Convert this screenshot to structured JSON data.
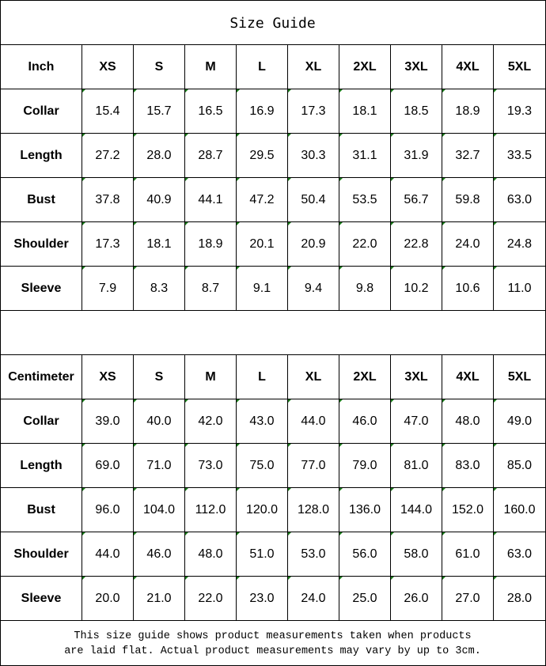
{
  "title": "Size Guide",
  "inch_table": {
    "header": [
      "Inch",
      "XS",
      "S",
      "M",
      "L",
      "XL",
      "2XL",
      "3XL",
      "4XL",
      "5XL"
    ],
    "rows": [
      {
        "label": "Collar",
        "values": [
          "15.4",
          "15.7",
          "16.5",
          "16.9",
          "17.3",
          "18.1",
          "18.5",
          "18.9",
          "19.3"
        ]
      },
      {
        "label": "Length",
        "values": [
          "27.2",
          "28.0",
          "28.7",
          "29.5",
          "30.3",
          "31.1",
          "31.9",
          "32.7",
          "33.5"
        ]
      },
      {
        "label": "Bust",
        "values": [
          "37.8",
          "40.9",
          "44.1",
          "47.2",
          "50.4",
          "53.5",
          "56.7",
          "59.8",
          "63.0"
        ]
      },
      {
        "label": "Shoulder",
        "values": [
          "17.3",
          "18.1",
          "18.9",
          "20.1",
          "20.9",
          "22.0",
          "22.8",
          "24.0",
          "24.8"
        ]
      },
      {
        "label": "Sleeve",
        "values": [
          "7.9",
          "8.3",
          "8.7",
          "9.1",
          "9.4",
          "9.8",
          "10.2",
          "10.6",
          "11.0"
        ]
      }
    ]
  },
  "cm_table": {
    "header": [
      "Centimeter",
      "XS",
      "S",
      "M",
      "L",
      "XL",
      "2XL",
      "3XL",
      "4XL",
      "5XL"
    ],
    "rows": [
      {
        "label": "Collar",
        "values": [
          "39.0",
          "40.0",
          "42.0",
          "43.0",
          "44.0",
          "46.0",
          "47.0",
          "48.0",
          "49.0"
        ]
      },
      {
        "label": "Length",
        "values": [
          "69.0",
          "71.0",
          "73.0",
          "75.0",
          "77.0",
          "79.0",
          "81.0",
          "83.0",
          "85.0"
        ]
      },
      {
        "label": "Bust",
        "values": [
          "96.0",
          "104.0",
          "112.0",
          "120.0",
          "128.0",
          "136.0",
          "144.0",
          "152.0",
          "160.0"
        ]
      },
      {
        "label": "Shoulder",
        "values": [
          "44.0",
          "46.0",
          "48.0",
          "51.0",
          "53.0",
          "56.0",
          "58.0",
          "61.0",
          "63.0"
        ]
      },
      {
        "label": "Sleeve",
        "values": [
          "20.0",
          "21.0",
          "22.0",
          "23.0",
          "24.0",
          "25.0",
          "26.0",
          "27.0",
          "28.0"
        ]
      }
    ]
  },
  "footer": {
    "line1": "This size guide shows product measurements taken when products",
    "line2": "are laid flat. Actual product measurements may vary by up to 3cm."
  },
  "colors": {
    "marker": "#1a7a1a",
    "border": "#000000"
  }
}
